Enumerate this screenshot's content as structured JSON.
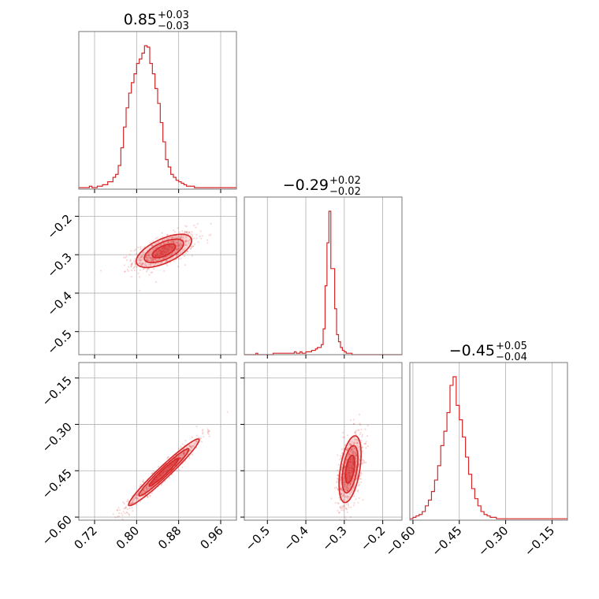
{
  "chart_data": {
    "type": "corner",
    "color": "#d62728",
    "grid": true,
    "parameters": [
      {
        "range": [
          0.69,
          0.99
        ],
        "title": {
          "median": "0.85",
          "plus": "+0.03",
          "minus": "−0.03"
        },
        "ticks": [
          0.72,
          0.8,
          0.88,
          0.96
        ],
        "tick_labels": [
          "0.72",
          "0.80",
          "0.88",
          "0.96"
        ],
        "hist": {
          "start": 0.69,
          "step": 0.005,
          "values": [
            1,
            1,
            1,
            1,
            2,
            1,
            1,
            2,
            2,
            3,
            3,
            5,
            5,
            8,
            10,
            16,
            28,
            42,
            55,
            65,
            72,
            78,
            85,
            88,
            92,
            97,
            96,
            85,
            78,
            68,
            58,
            45,
            32,
            20,
            15,
            10,
            8,
            6,
            5,
            4,
            3,
            2,
            2,
            2,
            1,
            1,
            1,
            1,
            1,
            1,
            1,
            1,
            1,
            1,
            1,
            1,
            1,
            1,
            1,
            1
          ]
        }
      },
      {
        "range": [
          -0.56,
          -0.15
        ],
        "title": {
          "median": "−0.29",
          "plus": "+0.02",
          "minus": "−0.02"
        },
        "y_ticks": [
          -0.5,
          -0.4,
          -0.3,
          -0.2
        ],
        "y_tick_labels": [
          "−0.5",
          "−0.4",
          "−0.3",
          "−0.2"
        ],
        "x_ticks": [
          -0.5,
          -0.4,
          -0.3,
          -0.2
        ],
        "x_tick_labels": [
          "−0.5",
          "−0.4",
          "−0.3",
          "−0.2"
        ],
        "hist": {
          "start": -0.56,
          "step": 0.005,
          "values": [
            0,
            0,
            0,
            0,
            0,
            0,
            1,
            0,
            0,
            0,
            0,
            0,
            0,
            0,
            0,
            1,
            1,
            1,
            1,
            1,
            1,
            1,
            1,
            1,
            1,
            1,
            2,
            1,
            1,
            2,
            1,
            1,
            2,
            2,
            2,
            3,
            3,
            4,
            5,
            5,
            7,
            18,
            48,
            78,
            100,
            60,
            60,
            32,
            14,
            9,
            5,
            3,
            2,
            1,
            1,
            1,
            0,
            0,
            0,
            0,
            0,
            0,
            0,
            0,
            0,
            0,
            0,
            0,
            0,
            0,
            0,
            0,
            0,
            0,
            0,
            0,
            0,
            0,
            0,
            0,
            0,
            0
          ]
        }
      },
      {
        "range": [
          -0.61,
          -0.1
        ],
        "title": {
          "median": "−0.45",
          "plus": "+0.05",
          "minus": "−0.04"
        },
        "y_ticks": [
          -0.6,
          -0.45,
          -0.3,
          -0.15
        ],
        "y_tick_labels": [
          "−0.60",
          "−0.45",
          "−0.30",
          "−0.15"
        ],
        "x_ticks": [
          -0.6,
          -0.45,
          -0.3,
          -0.15
        ],
        "x_tick_labels": [
          "−0.60",
          "−0.45",
          "−0.30",
          "−0.15"
        ],
        "hist": {
          "start": -0.61,
          "step": 0.01,
          "values": [
            1,
            2,
            3,
            4,
            6,
            10,
            14,
            20,
            28,
            38,
            52,
            62,
            75,
            94,
            100,
            80,
            70,
            58,
            44,
            32,
            22,
            15,
            10,
            6,
            4,
            3,
            2,
            2,
            1,
            1,
            1,
            1,
            1,
            1,
            1,
            1,
            1,
            1,
            1,
            1,
            1,
            1,
            1,
            1,
            1,
            1,
            1,
            1,
            1,
            1,
            1
          ]
        }
      }
    ],
    "pairs": [
      {
        "x": 0,
        "y": 1,
        "center": [
          0.852,
          -0.29
        ],
        "sd": [
          0.022,
          0.018
        ],
        "rho": 0.62,
        "levels": [
          1.0,
          1.7,
          2.4
        ]
      },
      {
        "x": 0,
        "y": 2,
        "center": [
          0.852,
          -0.455
        ],
        "sd": [
          0.028,
          0.045
        ],
        "rho": 0.97,
        "levels": [
          1.0,
          1.7,
          2.4
        ]
      },
      {
        "x": 1,
        "y": 2,
        "center": [
          -0.285,
          -0.445
        ],
        "sd": [
          0.012,
          0.045
        ],
        "rho": 0.45,
        "levels": [
          1.0,
          1.7,
          2.4
        ]
      }
    ]
  }
}
